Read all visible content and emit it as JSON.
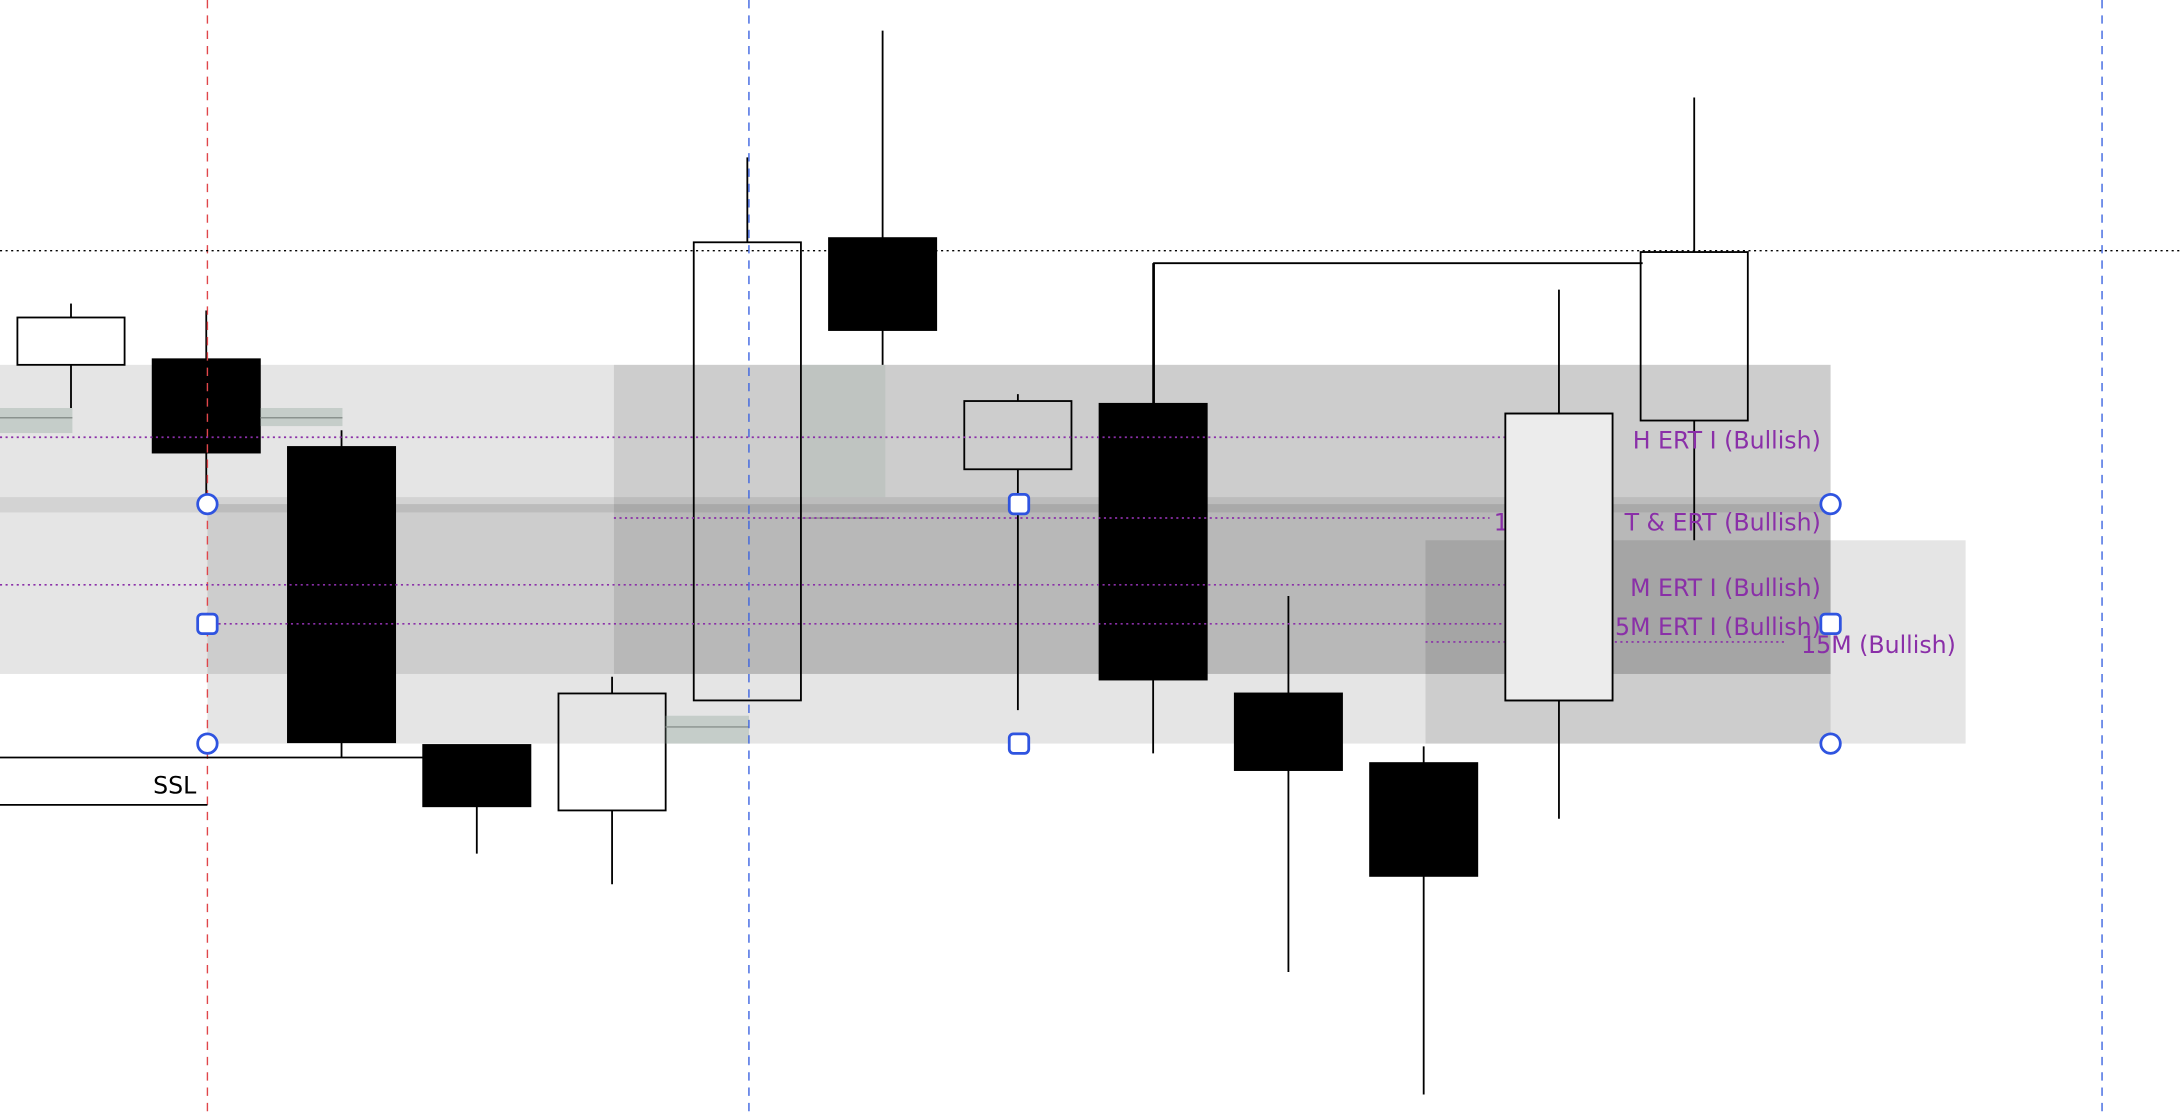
{
  "chart_data": {
    "type": "candlestick",
    "title": "",
    "xlabel": "",
    "ylabel": "",
    "ylim": [
      0,
      800
    ],
    "candles": [
      {
        "open": 538,
        "high": 582,
        "low": 507,
        "close": 572
      },
      {
        "open": 542,
        "high": 577,
        "low": 440,
        "close": 475
      },
      {
        "open": 479,
        "high": 491,
        "low": 256,
        "close": 267
      },
      {
        "open": 265,
        "high": 265,
        "low": 187,
        "close": 221
      },
      {
        "open": 218,
        "high": 314,
        "low": 165,
        "close": 302
      },
      {
        "open": 297,
        "high": 687,
        "low": 297,
        "close": 626
      },
      {
        "open": 629,
        "high": 778,
        "low": 538,
        "close": 563
      },
      {
        "open": 463,
        "high": 517,
        "low": 290,
        "close": 512
      },
      {
        "open": 510,
        "high": 611,
        "low": 259,
        "close": 312
      },
      {
        "open": 302,
        "high": 372,
        "low": 102,
        "close": 247
      },
      {
        "open": 252,
        "high": 264,
        "low": 14,
        "close": 171
      },
      {
        "open": 297,
        "high": 592,
        "low": 212,
        "close": 503
      },
      {
        "open": 498,
        "high": 730,
        "low": 412,
        "close": 619
      }
    ],
    "level_labels": [
      {
        "text": "H ERT I (Bullish)",
        "level": 486
      },
      {
        "text_prefix": "1",
        "text": "T & ERT (Bullish)",
        "level": 428
      },
      {
        "text": "M ERT I (Bullish)",
        "level": 380
      },
      {
        "text": "15M ERT I (Bullish)",
        "level": 352
      },
      {
        "text": "15M (Bullish)",
        "level": 339
      }
    ],
    "ssl_label": "SSL",
    "colors": {
      "bullish_body": "#ffffff",
      "bearish_body": "#000000",
      "zone": "#e6e6e6",
      "level_line": "#8a2fa8",
      "handle": "#2f54e0",
      "session_line_red": "#e0464b",
      "session_line_blue": "#3c64e0"
    }
  }
}
